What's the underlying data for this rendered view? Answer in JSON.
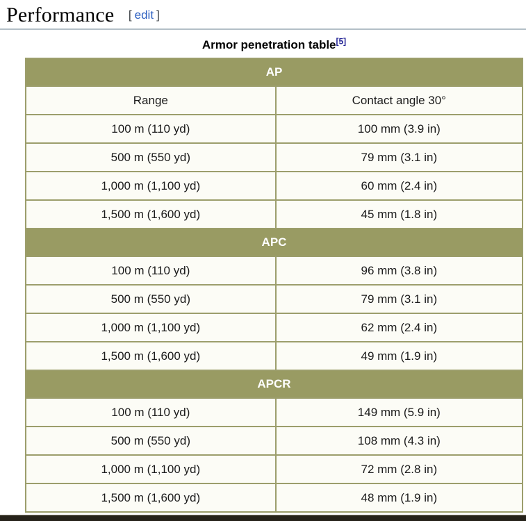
{
  "page": {
    "heading": "Performance",
    "edit": {
      "open": "[",
      "label": "edit",
      "close": "]"
    }
  },
  "table": {
    "caption": "Armor penetration table",
    "caption_ref": "[5]",
    "col_headers": [
      "Range",
      "Contact angle 30°"
    ],
    "sections": [
      {
        "label": "AP",
        "rows": [
          [
            "100 m (110 yd)",
            "100 mm (3.9 in)"
          ],
          [
            "500 m (550 yd)",
            "79 mm (3.1 in)"
          ],
          [
            "1,000 m (1,100 yd)",
            "60 mm (2.4 in)"
          ],
          [
            "1,500 m (1,600 yd)",
            "45 mm (1.8 in)"
          ]
        ]
      },
      {
        "label": "APC",
        "rows": [
          [
            "100 m (110 yd)",
            "96 mm (3.8 in)"
          ],
          [
            "500 m (550 yd)",
            "79 mm (3.1 in)"
          ],
          [
            "1,000 m (1,100 yd)",
            "62 mm (2.4 in)"
          ],
          [
            "1,500 m (1,600 yd)",
            "49 mm (1.9 in)"
          ]
        ]
      },
      {
        "label": "APCR",
        "rows": [
          [
            "100 m (110 yd)",
            "149 mm (5.9 in)"
          ],
          [
            "500 m (550 yd)",
            "108 mm (4.3 in)"
          ],
          [
            "1,000 m (1,100 yd)",
            "72 mm (2.8 in)"
          ],
          [
            "1,500 m (1,600 yd)",
            "48 mm (1.9 in)"
          ]
        ]
      }
    ]
  },
  "colors": {
    "olive": "#999b63",
    "olive-border": "#9c9e6c",
    "cell-bg": "#fcfcf6",
    "link-blue": "#2c5fc0",
    "ref-navy": "#252596",
    "rule-gray": "#b3bfc7",
    "bar-dark": "#26221a"
  }
}
